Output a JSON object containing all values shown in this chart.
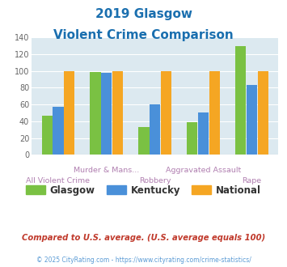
{
  "title_line1": "2019 Glasgow",
  "title_line2": "Violent Crime Comparison",
  "title_color": "#1a6faf",
  "categories": [
    "All Violent Crime",
    "Murder & Mans...",
    "Robbery",
    "Aggravated Assault",
    "Rape"
  ],
  "glasgow": [
    47,
    99,
    33,
    39,
    130
  ],
  "kentucky": [
    57,
    98,
    60,
    51,
    83
  ],
  "national": [
    100,
    100,
    100,
    100,
    100
  ],
  "glasgow_color": "#7ac143",
  "kentucky_color": "#4a90d9",
  "national_color": "#f5a623",
  "ylim": [
    0,
    140
  ],
  "yticks": [
    0,
    20,
    40,
    60,
    80,
    100,
    120,
    140
  ],
  "plot_bg": "#dce9f0",
  "legend_labels": [
    "Glasgow",
    "Kentucky",
    "National"
  ],
  "footnote1": "Compared to U.S. average. (U.S. average equals 100)",
  "footnote2": "© 2025 CityRating.com - https://www.cityrating.com/crime-statistics/",
  "footnote1_color": "#c0392b",
  "footnote2_color": "#5b9bd5",
  "label_color": "#b07fb0",
  "label_row1": [
    "",
    "Murder & Mans...",
    "",
    "Aggravated Assault",
    ""
  ],
  "label_row2": [
    "All Violent Crime",
    "",
    "Robbery",
    "",
    "Rape"
  ]
}
